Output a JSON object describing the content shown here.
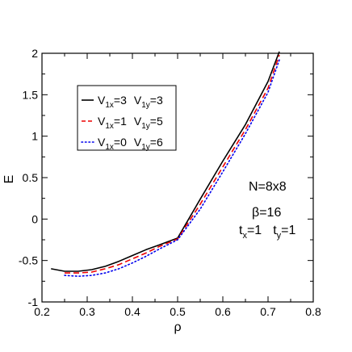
{
  "chart_data": {
    "type": "line",
    "xlabel": "ρ",
    "ylabel": "E",
    "xlim": [
      0.2,
      0.8
    ],
    "ylim": [
      -1,
      2
    ],
    "xticks": [
      "0.2",
      "0.3",
      "0.4",
      "0.5",
      "0.6",
      "0.7",
      "0.8"
    ],
    "yticks": [
      "-1",
      "-0.5",
      "0",
      "0.5",
      "1",
      "1.5",
      "2"
    ],
    "grid": false,
    "legend_position": "top-left",
    "series": [
      {
        "legend": {
          "v1x_main": "V",
          "v1x_sub": "1x",
          "v1x_val": "=3",
          "v1y_main": "V",
          "v1y_sub": "1y",
          "v1y_val": "=3"
        },
        "color": "#000000",
        "style": "solid",
        "x": [
          0.22,
          0.25,
          0.28,
          0.31,
          0.34,
          0.37,
          0.4,
          0.43,
          0.46,
          0.5,
          0.55,
          0.6,
          0.65,
          0.7,
          0.725
        ],
        "y": [
          -0.6,
          -0.63,
          -0.63,
          -0.61,
          -0.57,
          -0.51,
          -0.44,
          -0.37,
          -0.31,
          -0.23,
          0.24,
          0.7,
          1.14,
          1.66,
          2.02
        ]
      },
      {
        "legend": {
          "v1x_main": "V",
          "v1x_sub": "1x",
          "v1x_val": "=1",
          "v1y_main": "V",
          "v1y_sub": "1y",
          "v1y_val": "=5"
        },
        "color": "#ee0000",
        "style": "dashed",
        "x": [
          0.25,
          0.28,
          0.31,
          0.34,
          0.37,
          0.4,
          0.43,
          0.46,
          0.5,
          0.55,
          0.6,
          0.65,
          0.7,
          0.725
        ],
        "y": [
          -0.65,
          -0.65,
          -0.64,
          -0.6,
          -0.55,
          -0.48,
          -0.41,
          -0.33,
          -0.24,
          0.18,
          0.63,
          1.08,
          1.58,
          1.98
        ]
      },
      {
        "legend": {
          "v1x_main": "V",
          "v1x_sub": "1x",
          "v1x_val": "=0",
          "v1y_main": "V",
          "v1y_sub": "1y",
          "v1y_val": "=6"
        },
        "color": "#0000ee",
        "style": "dotted",
        "x": [
          0.25,
          0.28,
          0.31,
          0.34,
          0.37,
          0.4,
          0.43,
          0.46,
          0.5,
          0.55,
          0.6,
          0.65,
          0.7,
          0.725
        ],
        "y": [
          -0.68,
          -0.69,
          -0.68,
          -0.65,
          -0.6,
          -0.53,
          -0.45,
          -0.36,
          -0.25,
          0.12,
          0.57,
          1.03,
          1.53,
          1.92
        ]
      }
    ],
    "annotations": {
      "n": "N=8x8",
      "beta": "β=16",
      "tx_main": "t",
      "tx_sub": "x",
      "tx_val": "=1",
      "ty_main": "t",
      "ty_sub": "y",
      "ty_val": "=1"
    }
  }
}
